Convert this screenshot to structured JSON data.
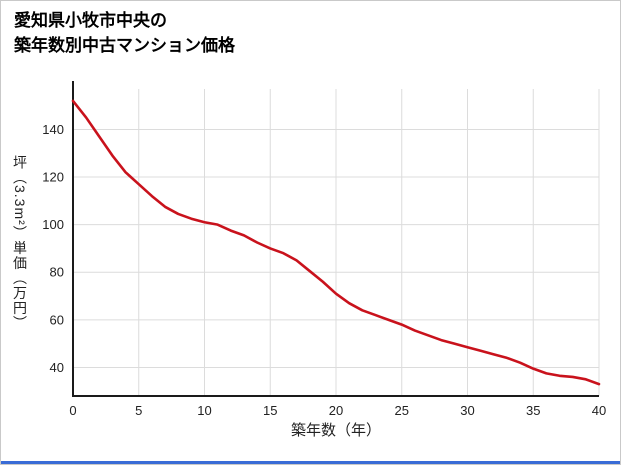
{
  "page": {
    "border_color": "#c9c9c9",
    "bottom_bar_color": "#3a6cd6"
  },
  "chart_data": {
    "type": "line",
    "title_lines": [
      "愛知県小牧市中央の",
      "築年数別中古マンション価格"
    ],
    "xlabel": "築年数（年）",
    "ylabel": "坪（3.3m²）単価（万円）",
    "x": [
      0,
      1,
      2,
      3,
      4,
      5,
      6,
      7,
      8,
      9,
      10,
      11,
      12,
      13,
      14,
      15,
      16,
      17,
      18,
      19,
      20,
      21,
      22,
      23,
      24,
      25,
      26,
      27,
      28,
      29,
      30,
      31,
      32,
      33,
      34,
      35,
      36,
      37,
      38,
      39,
      40
    ],
    "values": [
      152,
      145,
      137,
      129,
      122,
      117,
      112,
      107.5,
      104.5,
      102.5,
      101,
      100,
      97.5,
      95.5,
      92.5,
      90,
      88,
      85,
      80.5,
      76,
      71,
      67,
      64,
      62,
      60,
      58,
      55.5,
      53.5,
      51.5,
      50,
      48.5,
      47,
      45.5,
      44,
      42,
      39.5,
      37.5,
      36.5,
      36,
      35,
      33
    ],
    "xlim": [
      0,
      40
    ],
    "ylim": [
      28,
      157
    ],
    "xticks": [
      0,
      5,
      10,
      15,
      20,
      25,
      30,
      35,
      40
    ],
    "yticks": [
      40,
      60,
      80,
      100,
      120,
      140
    ],
    "grid": true,
    "legend": "none",
    "line_color": "#c9121c",
    "grid_color": "#dcdcdc",
    "axis_color": "#1a1a1a",
    "tick_color": "#222222"
  }
}
